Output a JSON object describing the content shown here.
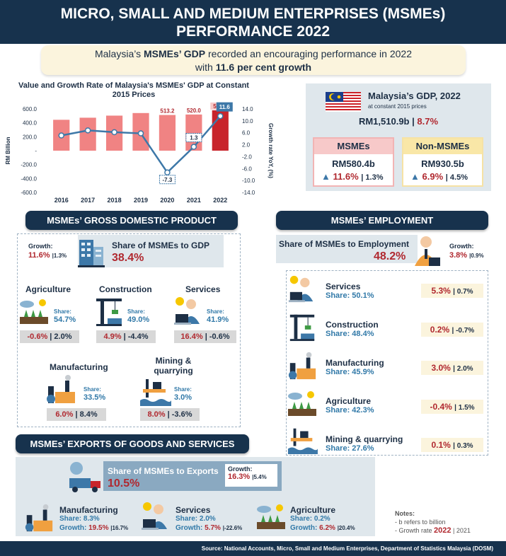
{
  "header": {
    "line1": "MICRO, SMALL AND MEDIUM ENTERPRISES (MSMEs)",
    "line2": "PERFORMANCE 2022"
  },
  "intro": {
    "p1": "Malaysia’s ",
    "b1": "MSMEs’ GDP",
    "p2": " recorded an encouraging performance in 2022",
    "p3": "with ",
    "b2": "11.6 per cent growth"
  },
  "chart_data": {
    "type": "bar",
    "title": "Value and Growth Rate of Malaysia's MSMEs' GDP at Constant 2015 Prices",
    "categories": [
      "2016",
      "2017",
      "2018",
      "2019",
      "2020",
      "2021",
      "2022"
    ],
    "ylabel": "RM Billion",
    "y2label": "Growth rate YoY, (%)",
    "ylim": [
      -600,
      600
    ],
    "y2lim": [
      -14,
      14
    ],
    "yticks": [
      "600.0",
      "400.0",
      "200.0",
      "-",
      "-200.0",
      "-400.0",
      "-600.0"
    ],
    "y2ticks": [
      "14.0",
      "10.0",
      "6.0",
      "2.0",
      "-2.0",
      "-6.0",
      "-10.0",
      "-14.0"
    ],
    "series": [
      {
        "type": "bar",
        "values": [
          444,
          474,
          504,
          541,
          513.2,
          520.0,
          580.4
        ],
        "color": "#f08383",
        "highlight_color": "#c8242b"
      },
      {
        "type": "line",
        "values": [
          5.1,
          6.8,
          6.2,
          5.8,
          -7.3,
          1.3,
          11.6
        ],
        "color": "#3d78a8"
      }
    ],
    "bar_labels": [
      "",
      "",
      "",
      "",
      "513.2",
      "520.0",
      "580.4"
    ],
    "line_labels": [
      "",
      "",
      "",
      "",
      "-7.3",
      "1.3",
      "11.6"
    ]
  },
  "gdp": {
    "title": "Malaysia’s GDP, 2022",
    "subtitle": "at constant 2015 prices",
    "value": "RM1,510.9b",
    "sep": " | ",
    "growth": "8.7%",
    "msme": {
      "title": "MSMEs",
      "value": "RM580.4b",
      "growth": "11.6%",
      "prev": "| 1.3%"
    },
    "non": {
      "title": "Non-MSMEs",
      "value": "RM930.5b",
      "growth": "6.9%",
      "prev": "| 4.5%"
    }
  },
  "gdp_section": {
    "title": "MSMEs’ GROSS DOMESTIC PRODUCT",
    "growth_label": "Growth:",
    "growth": "11.6%",
    "growth_prev": "|1.3%",
    "share_label": "Share of MSMEs to GDP",
    "share_value": "38.4%",
    "share_word": "Share:",
    "sectors": [
      {
        "name": "Agriculture",
        "share": "54.7%",
        "growth": "-0.6%",
        "prev": "| 2.0%"
      },
      {
        "name": "Construction",
        "share": "49.0%",
        "growth": "4.9%",
        "prev": "| -4.4%"
      },
      {
        "name": "Services",
        "share": "41.9%",
        "growth": "16.4%",
        "prev": "| -0.6%"
      },
      {
        "name": "Manufacturing",
        "share": "33.5%",
        "growth": "6.0%",
        "prev": "| 8.4%"
      },
      {
        "name": "Mining &\nquarrying",
        "share": "3.0%",
        "growth": "8.0%",
        "prev": "| -3.6%"
      }
    ]
  },
  "emp_section": {
    "title": "MSMEs’ EMPLOYMENT",
    "share_label": "Share of MSMEs to Employment",
    "share_value": "48.2%",
    "growth_label": "Growth:",
    "growth": "3.8%",
    "growth_prev": "|0.9%",
    "sectors": [
      {
        "name": "Services",
        "share": "Share: 50.1%",
        "growth": "5.3%",
        "prev": "| 0.7%"
      },
      {
        "name": "Construction",
        "share": "Share: 48.4%",
        "growth": "0.2%",
        "prev": "| -0.7%"
      },
      {
        "name": "Manufacturing",
        "share": "Share: 45.9%",
        "growth": "3.0%",
        "prev": "| 2.0%"
      },
      {
        "name": "Agriculture",
        "share": "Share: 42.3%",
        "growth": "-0.4%",
        "prev": "| 1.5%"
      },
      {
        "name": "Mining & quarrying",
        "share": "Share: 27.6%",
        "growth": "0.1%",
        "prev": "| 0.3%"
      }
    ]
  },
  "exports_section": {
    "title": "MSMEs’ EXPORTS OF GOODS AND SERVICES",
    "share_label": "Share of MSMEs to Exports",
    "share_value": "10.5%",
    "growth_label": "Growth:",
    "growth": "16.3%",
    "growth_prev": "|5.4%",
    "sectors": [
      {
        "name": "Manufacturing",
        "share": "Share: 8.3%",
        "growth_label": "Growth: ",
        "growth": "19.5%",
        "prev": "|16.7%"
      },
      {
        "name": "Services",
        "share": "Share: 2.0%",
        "growth_label": "Growth: ",
        "growth": "5.7%",
        "prev": "|-22.6%"
      },
      {
        "name": "Agriculture",
        "share": "Share: 0.2%",
        "growth_label": "Growth: ",
        "growth": "6.2%",
        "prev": "|20.4%"
      }
    ]
  },
  "notes": {
    "title": "Notes:",
    "l1": "- b refers to billion",
    "l2": "- Growth rate ",
    "y1": "2022",
    "y2": " | 2021"
  },
  "footer": "Source: National Accounts, Micro, Small and Medium Enterprises, Department of Statistics Malaysia (DOSM)"
}
